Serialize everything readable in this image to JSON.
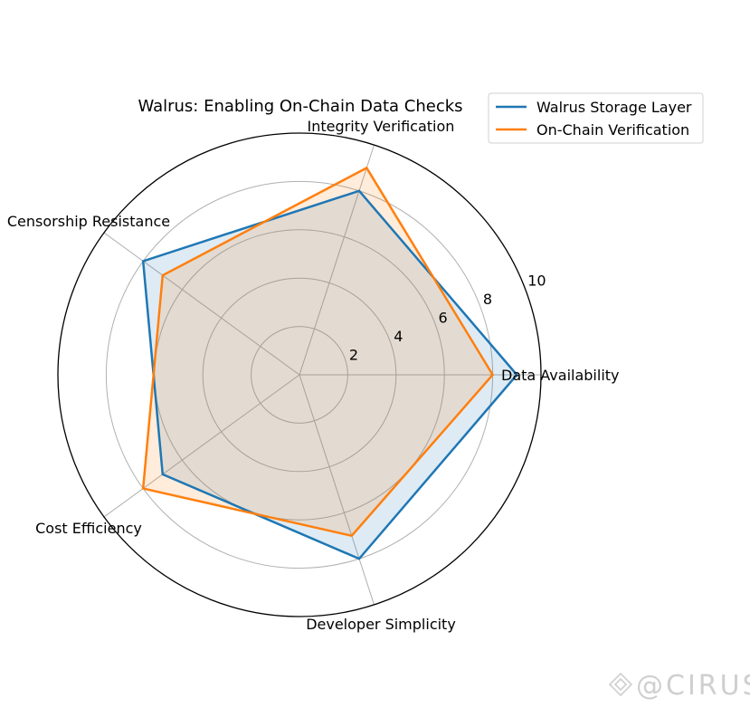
{
  "chart_data": {
    "type": "radar",
    "title": "Walrus: Enabling On-Chain Data Checks",
    "categories": [
      "Data Availability",
      "Integrity Verification",
      "Censorship Resistance",
      "Cost Efficiency",
      "Developer Simplicity"
    ],
    "rlim": [
      0,
      10
    ],
    "rticks": [
      2,
      4,
      6,
      8,
      10
    ],
    "grid": true,
    "legend_position": "top-right",
    "series": [
      {
        "name": "Walrus Storage Layer",
        "values": [
          9,
          8,
          8,
          7,
          8
        ],
        "color": "#1f77b4"
      },
      {
        "name": "On-Chain Verification",
        "values": [
          8,
          9,
          7,
          8,
          7
        ],
        "color": "#ff7f0e"
      }
    ]
  },
  "watermark": {
    "text": "@CIRUS",
    "icon": "binance-diamond-icon"
  }
}
